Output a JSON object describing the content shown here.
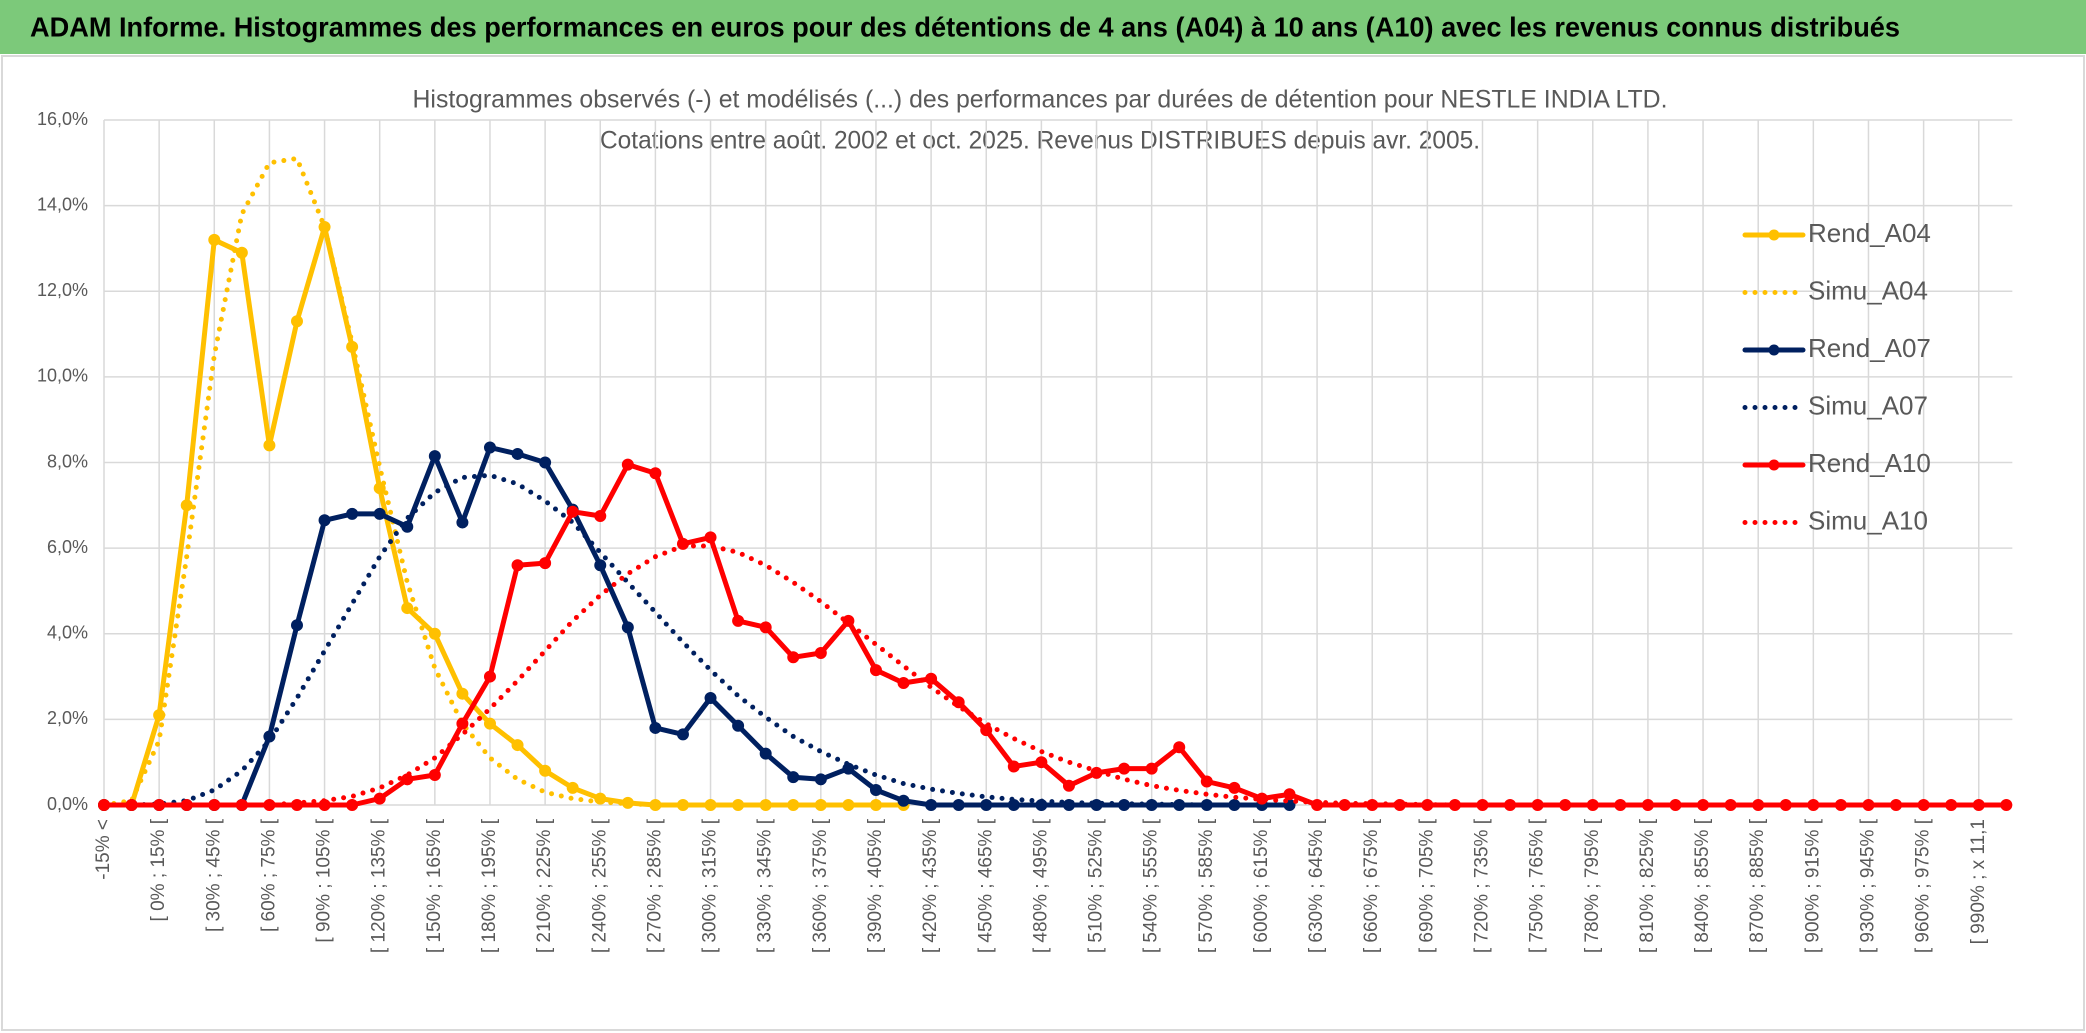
{
  "header": {
    "title": "ADAM Informe. Histogrammes des performances en euros pour des détentions de 4 ans (A04) à 10 ans (A10) avec les revenus connus distribués"
  },
  "chart_data": {
    "type": "line",
    "title": "Histogrammes observés (-) et modélisés (...) des performances par durées de détention pour NESTLE INDIA LTD.",
    "subtitle": "Cotations entre août. 2002 et oct. 2025. Revenus DISTRIBUES depuis avr. 2005.",
    "categories": [
      "-15% <",
      null,
      "[ 0% ; 15% [",
      null,
      "[ 30% ; 45% [",
      null,
      "[ 60% ; 75% [",
      null,
      "[ 90% ; 105% [",
      null,
      "[ 120% ; 135% [",
      null,
      "[ 150% ; 165% [",
      null,
      "[ 180% ; 195% [",
      null,
      "[ 210% ; 225% [",
      null,
      "[ 240% ; 255% [",
      null,
      "[ 270% ; 285% [",
      null,
      "[ 300% ; 315% [",
      null,
      "[ 330% ; 345% [",
      null,
      "[ 360% ; 375% [",
      null,
      "[ 390% ; 405% [",
      null,
      "[ 420% ; 435% [",
      null,
      "[ 450% ; 465% [",
      null,
      "[ 480% ; 495% [",
      null,
      "[ 510% ; 525% [",
      null,
      "[ 540% ; 555% [",
      null,
      "[ 570% ; 585% [",
      null,
      "[ 600% ; 615% [",
      null,
      "[ 630% ; 645% [",
      null,
      "[ 660% ; 675% [",
      null,
      "[ 690% ; 705% [",
      null,
      "[ 720% ; 735% [",
      null,
      "[ 750% ; 765% [",
      null,
      "[ 780% ; 795% [",
      null,
      "[ 810% ; 825% [",
      null,
      "[ 840% ; 855% [",
      null,
      "[ 870% ; 885% [",
      null,
      "[ 900% ; 915% [",
      null,
      "[ 930% ; 945% [",
      null,
      "[ 960% ; 975% [",
      null,
      "[ 990% ; x 11,1",
      null
    ],
    "ylim": [
      0,
      16
    ],
    "yticks": [
      {
        "value": 0,
        "label": "0,0%"
      },
      {
        "value": 2,
        "label": "2,0%"
      },
      {
        "value": 4,
        "label": "4,0%"
      },
      {
        "value": 6,
        "label": "6,0%"
      },
      {
        "value": 8,
        "label": "8,0%"
      },
      {
        "value": 10,
        "label": "10,0%"
      },
      {
        "value": 12,
        "label": "12,0%"
      },
      {
        "value": 14,
        "label": "14,0%"
      },
      {
        "value": 16,
        "label": "16,0%"
      }
    ],
    "grid": true,
    "legend": "right",
    "series": [
      {
        "name": "Rend_A04",
        "color": "#ffc000",
        "style": "solid",
        "values": [
          0,
          0,
          2.1,
          7.0,
          13.2,
          12.9,
          8.4,
          11.3,
          13.5,
          10.7,
          7.4,
          4.6,
          4.0,
          2.6,
          1.9,
          1.4,
          0.8,
          0.4,
          0.15,
          0.05,
          0,
          0,
          0,
          0,
          0,
          0,
          0,
          0,
          0,
          0,
          null,
          null,
          null,
          null,
          null,
          null,
          null,
          null,
          null,
          null,
          null,
          null,
          null,
          null,
          null,
          null,
          null,
          null,
          null,
          null,
          null,
          null,
          null,
          null,
          null,
          null,
          null,
          null,
          null,
          null,
          null,
          null,
          null,
          null,
          null,
          null,
          null,
          null,
          null,
          null
        ]
      },
      {
        "name": "Simu_A04",
        "color": "#ffc000",
        "style": "dotted",
        "values": [
          0,
          0.1,
          1.5,
          5.8,
          10.5,
          13.8,
          15.0,
          15.1,
          13.5,
          10.8,
          7.9,
          5.2,
          3.2,
          1.9,
          1.1,
          0.6,
          0.3,
          0.15,
          0.07,
          0.03,
          0,
          0,
          0,
          0,
          0,
          0,
          0,
          0,
          0,
          0,
          null,
          null,
          null,
          null,
          null,
          null,
          null,
          null,
          null,
          null,
          null,
          null,
          null,
          null,
          null,
          null,
          null,
          null,
          null,
          null,
          null,
          null,
          null,
          null,
          null,
          null,
          null,
          null,
          null,
          null,
          null,
          null,
          null,
          null,
          null,
          null,
          null,
          null,
          null,
          null
        ]
      },
      {
        "name": "Rend_A07",
        "color": "#002060",
        "style": "solid",
        "values": [
          0,
          0,
          0,
          0,
          0,
          0,
          1.6,
          4.2,
          6.65,
          6.8,
          6.8,
          6.5,
          8.15,
          6.6,
          8.35,
          8.2,
          8.0,
          6.9,
          5.6,
          4.15,
          1.8,
          1.65,
          2.5,
          1.85,
          1.2,
          0.65,
          0.6,
          0.85,
          0.35,
          0.1,
          0,
          0,
          0,
          0,
          0,
          0,
          0,
          0,
          0,
          0,
          0,
          0,
          0,
          0,
          null,
          null,
          null,
          null,
          null,
          null,
          null,
          null,
          null,
          null,
          null,
          null,
          null,
          null,
          null,
          null,
          null,
          null,
          null,
          null,
          null,
          null,
          null,
          null,
          null,
          null
        ]
      },
      {
        "name": "Simu_A07",
        "color": "#002060",
        "style": "dotted",
        "values": [
          0,
          0,
          0.02,
          0.1,
          0.35,
          0.8,
          1.5,
          2.5,
          3.6,
          4.7,
          5.8,
          6.7,
          7.3,
          7.65,
          7.7,
          7.5,
          7.1,
          6.6,
          5.9,
          5.2,
          4.5,
          3.8,
          3.15,
          2.55,
          2.05,
          1.6,
          1.25,
          0.95,
          0.7,
          0.5,
          0.37,
          0.27,
          0.19,
          0.13,
          0.09,
          0.06,
          0.04,
          0.03,
          0.02,
          0.01,
          0,
          0,
          0,
          0,
          null,
          null,
          null,
          null,
          null,
          null,
          null,
          null,
          null,
          null,
          null,
          null,
          null,
          null,
          null,
          null,
          null,
          null,
          null,
          null,
          null,
          null,
          null,
          null,
          null,
          null
        ]
      },
      {
        "name": "Rend_A10",
        "color": "#ff0000",
        "style": "solid",
        "values": [
          0,
          0,
          0,
          0,
          0,
          0,
          0,
          0,
          0,
          0,
          0.15,
          0.6,
          0.7,
          1.9,
          3.0,
          5.6,
          5.65,
          6.85,
          6.75,
          7.95,
          7.75,
          6.1,
          6.25,
          4.3,
          4.15,
          3.45,
          3.55,
          4.3,
          3.15,
          2.85,
          2.95,
          2.4,
          1.75,
          0.9,
          1.0,
          0.45,
          0.75,
          0.85,
          0.85,
          1.35,
          0.55,
          0.4,
          0.15,
          0.25,
          0,
          0,
          0,
          0,
          0,
          0,
          0,
          0,
          0,
          0,
          0,
          0,
          0,
          0,
          0,
          0,
          0,
          0,
          0,
          0,
          0,
          0,
          0,
          0,
          0,
          0
        ]
      },
      {
        "name": "Simu_A10",
        "color": "#ff0000",
        "style": "dotted",
        "values": [
          0,
          0,
          0,
          0,
          0,
          0,
          0,
          0.05,
          0.1,
          0.2,
          0.4,
          0.7,
          1.1,
          1.65,
          2.25,
          2.9,
          3.6,
          4.3,
          4.9,
          5.4,
          5.8,
          6.05,
          6.05,
          5.9,
          5.6,
          5.2,
          4.75,
          4.25,
          3.75,
          3.25,
          2.75,
          2.3,
          1.9,
          1.55,
          1.25,
          1.0,
          0.8,
          0.6,
          0.45,
          0.34,
          0.25,
          0.18,
          0.13,
          0.09,
          0.06,
          0.04,
          0.03,
          0.02,
          0.01,
          0,
          0,
          0,
          0,
          0,
          0,
          0,
          0,
          0,
          0,
          0,
          0,
          0,
          0,
          0,
          0,
          0,
          0,
          0,
          0,
          0
        ]
      }
    ]
  }
}
